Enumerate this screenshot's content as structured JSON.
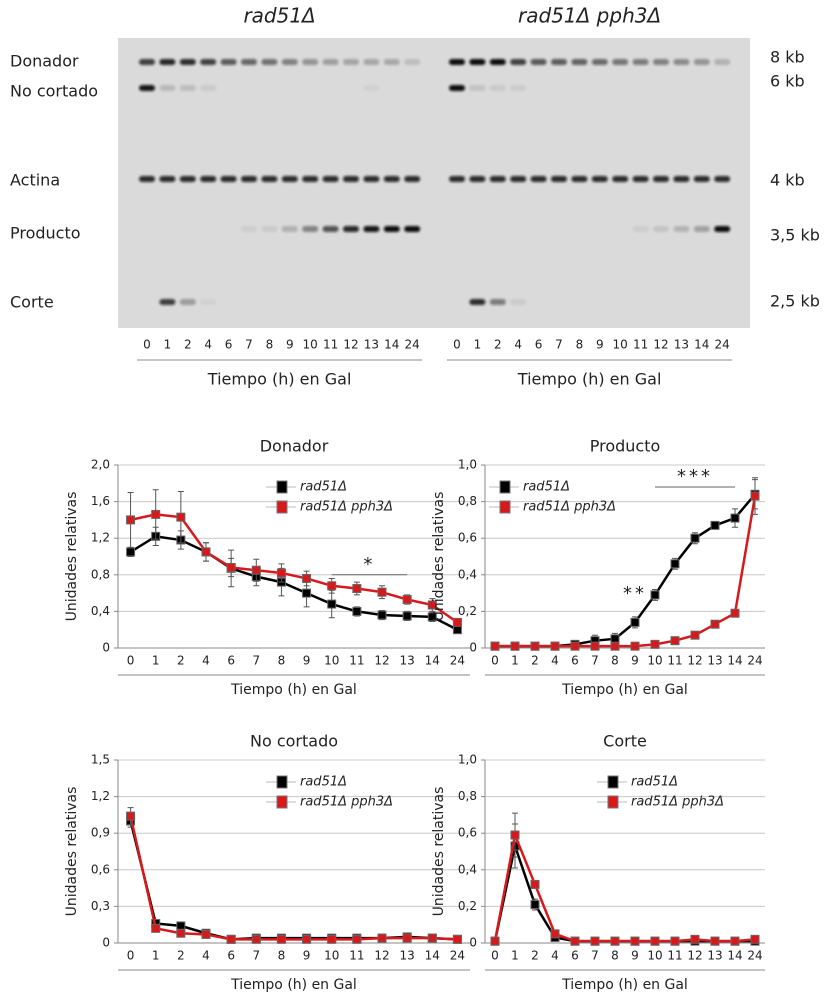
{
  "gel": {
    "panels": [
      {
        "title": "rad51Δ",
        "lanes": [
          "0",
          "1",
          "2",
          "4",
          "6",
          "7",
          "8",
          "9",
          "10",
          "11",
          "12",
          "13",
          "14",
          "24"
        ],
        "xlabel": "Tiempo (h) en Gal"
      },
      {
        "title": "rad51Δ pph3Δ",
        "lanes": [
          "0",
          "1",
          "2",
          "4",
          "6",
          "7",
          "8",
          "9",
          "10",
          "11",
          "12",
          "13",
          "14",
          "24"
        ],
        "xlabel": "Tiempo (h) en Gal"
      }
    ],
    "bands": [
      {
        "label": "Donador",
        "size": "8 kb"
      },
      {
        "label": "No cortado",
        "size": "6 kb"
      },
      {
        "label": "Actina",
        "size": "4 kb"
      },
      {
        "label": "Producto",
        "size": "3,5 kb"
      },
      {
        "label": "Corte",
        "size": "2,5 kb"
      }
    ]
  },
  "chart_data": [
    {
      "type": "line",
      "title": "Donador",
      "ylabel": "Unidades relativas",
      "xlabel": "Tiempo (h) en Gal",
      "categories": [
        "0",
        "1",
        "2",
        "4",
        "6",
        "7",
        "8",
        "9",
        "10",
        "11",
        "12",
        "13",
        "14",
        "24"
      ],
      "ylim": [
        0,
        2
      ],
      "yticks": [
        0,
        {
          "value": 0.4,
          "label": "0,4"
        },
        {
          "value": 0.8,
          "label": "0,8"
        },
        {
          "value": 1.2,
          "label": "1,2"
        },
        {
          "value": 1.6,
          "label": "1,6"
        },
        {
          "value": 2,
          "label": "2,0"
        }
      ],
      "grid": true,
      "legend": "upper center",
      "series": [
        {
          "name": "rad51Δ",
          "color": "#000000",
          "values": [
            1.05,
            1.22,
            1.18,
            1.05,
            0.87,
            0.78,
            0.72,
            0.6,
            0.48,
            0.4,
            0.36,
            0.35,
            0.34,
            0.2
          ],
          "errors": [
            0.05,
            0.1,
            0.1,
            0.1,
            0.2,
            0.1,
            0.15,
            0.15,
            0.15,
            0.05,
            0.05,
            0.05,
            0.05,
            0.03
          ]
        },
        {
          "name": "rad51Δ pph3Δ",
          "color": "#d7191c",
          "values": [
            1.4,
            1.46,
            1.43,
            1.05,
            0.88,
            0.85,
            0.82,
            0.76,
            0.68,
            0.65,
            0.61,
            0.53,
            0.47,
            0.28
          ],
          "errors": [
            0.3,
            0.27,
            0.28,
            0.1,
            0.1,
            0.12,
            0.1,
            0.08,
            0.08,
            0.07,
            0.07,
            0.05,
            0.07,
            0.04
          ]
        }
      ],
      "annotations": [
        {
          "text": "*",
          "span": [
            "10",
            "13"
          ],
          "y": 0.8
        }
      ]
    },
    {
      "type": "line",
      "title": "Producto",
      "ylabel": "Unidades relativas",
      "xlabel": "Tiempo (h) en Gal",
      "categories": [
        "0",
        "1",
        "2",
        "4",
        "6",
        "7",
        "8",
        "9",
        "10",
        "11",
        "12",
        "13",
        "14",
        "24"
      ],
      "ylim": [
        0,
        1
      ],
      "yticks": [
        0,
        {
          "value": 0.2,
          "label": "0,2"
        },
        {
          "value": 0.4,
          "label": "0,4"
        },
        {
          "value": 0.6,
          "label": "0,6"
        },
        {
          "value": 0.8,
          "label": "0,8"
        },
        {
          "value": 1,
          "label": "1,0"
        }
      ],
      "grid": true,
      "legend": "upper left",
      "series": [
        {
          "name": "rad51Δ",
          "color": "#000000",
          "values": [
            0.01,
            0.01,
            0.01,
            0.01,
            0.02,
            0.04,
            0.05,
            0.14,
            0.29,
            0.46,
            0.6,
            0.67,
            0.71,
            0.84
          ],
          "errors": [
            0.01,
            0.01,
            0.01,
            0.01,
            0.02,
            0.03,
            0.03,
            0.03,
            0.03,
            0.03,
            0.03,
            0.02,
            0.05,
            0.08
          ]
        },
        {
          "name": "rad51Δ pph3Δ",
          "color": "#d7191c",
          "values": [
            0.01,
            0.01,
            0.01,
            0.01,
            0.01,
            0.01,
            0.01,
            0.01,
            0.02,
            0.04,
            0.07,
            0.13,
            0.19,
            0.83
          ],
          "errors": [
            0.01,
            0.01,
            0.01,
            0.01,
            0.01,
            0.01,
            0.01,
            0.01,
            0.01,
            0.01,
            0.01,
            0.01,
            0.02,
            0.1
          ]
        }
      ],
      "annotations": [
        {
          "text": "**",
          "span": [
            "9",
            "9"
          ],
          "y": 0.24
        },
        {
          "text": "***",
          "span": [
            "10",
            "14"
          ],
          "y": 0.88
        }
      ]
    },
    {
      "type": "line",
      "title": "No cortado",
      "ylabel": "Unidades relativas",
      "xlabel": "Tiempo (h) en Gal",
      "categories": [
        "0",
        "1",
        "2",
        "4",
        "6",
        "7",
        "8",
        "9",
        "10",
        "11",
        "12",
        "13",
        "14",
        "24"
      ],
      "ylim": [
        0,
        1.5
      ],
      "yticks": [
        0,
        {
          "value": 0.3,
          "label": "0,3"
        },
        {
          "value": 0.6,
          "label": "0,6"
        },
        {
          "value": 0.9,
          "label": "0,9"
        },
        {
          "value": 1.2,
          "label": "1,2"
        },
        {
          "value": 1.5,
          "label": "1,5"
        }
      ],
      "grid": true,
      "legend": "upper center",
      "series": [
        {
          "name": "rad51Δ",
          "color": "#000000",
          "values": [
            1.0,
            0.16,
            0.14,
            0.08,
            0.03,
            0.04,
            0.04,
            0.04,
            0.04,
            0.04,
            0.04,
            0.05,
            0.04,
            0.03
          ],
          "errors": [
            0.05,
            0.02,
            0.03,
            0.02,
            0.01,
            0.01,
            0.01,
            0.01,
            0.01,
            0.01,
            0.01,
            0.01,
            0.01,
            0.01
          ]
        },
        {
          "name": "rad51Δ pph3Δ",
          "color": "#d7191c",
          "values": [
            1.04,
            0.12,
            0.08,
            0.07,
            0.03,
            0.03,
            0.03,
            0.03,
            0.03,
            0.03,
            0.04,
            0.04,
            0.04,
            0.03
          ],
          "errors": [
            0.07,
            0.02,
            0.02,
            0.02,
            0.01,
            0.01,
            0.01,
            0.01,
            0.01,
            0.01,
            0.01,
            0.01,
            0.01,
            0.01
          ]
        }
      ],
      "annotations": []
    },
    {
      "type": "line",
      "title": "Corte",
      "ylabel": "Unidades relativas",
      "xlabel": "Tiempo (h) en Gal",
      "categories": [
        "0",
        "1",
        "2",
        "4",
        "6",
        "7",
        "8",
        "9",
        "10",
        "11",
        "12",
        "13",
        "14",
        "24"
      ],
      "ylim": [
        0,
        1
      ],
      "yticks": [
        0,
        {
          "value": 0.2,
          "label": "0,2"
        },
        {
          "value": 0.4,
          "label": "0,4"
        },
        {
          "value": 0.6,
          "label": "0,6"
        },
        {
          "value": 0.8,
          "label": "0,8"
        },
        {
          "value": 1,
          "label": "1,0"
        }
      ],
      "grid": true,
      "legend": "upper center",
      "series": [
        {
          "name": "rad51Δ",
          "color": "#000000",
          "values": [
            0.01,
            0.53,
            0.21,
            0.03,
            0.01,
            0.01,
            0.01,
            0.01,
            0.01,
            0.01,
            0.01,
            0.01,
            0.01,
            0.01
          ],
          "errors": [
            0.01,
            0.12,
            0.03,
            0.02,
            0.01,
            0.01,
            0.01,
            0.01,
            0.01,
            0.01,
            0.01,
            0.01,
            0.01,
            0.01
          ]
        },
        {
          "name": "rad51Δ pph3Δ",
          "color": "#d7191c",
          "values": [
            0.01,
            0.59,
            0.32,
            0.05,
            0.01,
            0.01,
            0.01,
            0.01,
            0.01,
            0.01,
            0.02,
            0.01,
            0.01,
            0.02
          ],
          "errors": [
            0.01,
            0.12,
            0.02,
            0.02,
            0.01,
            0.01,
            0.01,
            0.01,
            0.01,
            0.01,
            0.01,
            0.01,
            0.01,
            0.01
          ]
        }
      ],
      "annotations": []
    }
  ]
}
